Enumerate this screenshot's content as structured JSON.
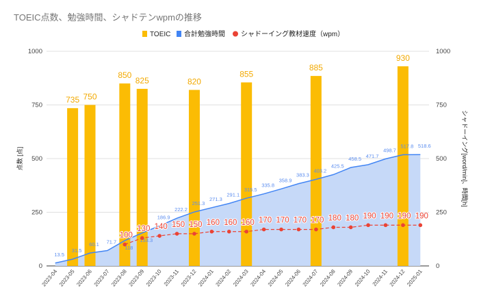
{
  "chart_data": {
    "type": "bar+area+line",
    "title": "TOEIC点数、勉強時間、シャドテンwpmの推移",
    "ylabel_left": "点数 [点]",
    "ylabel_right": "シャドーイング[word/min]、時間[h]",
    "ylim": [
      0,
      1000
    ],
    "yticks": [
      0,
      250,
      500,
      750,
      1000
    ],
    "legend_position": "top",
    "grid": true,
    "categories": [
      "2023-04",
      "2023-05",
      "2023-06",
      "2023-07",
      "2023-08",
      "2023-09",
      "2023-10",
      "2023-11",
      "2023-12",
      "2024-01",
      "2024-02",
      "2024-03",
      "2024-04",
      "2024-05",
      "2024-06",
      "2024-07",
      "2024-08",
      "2024-09",
      "2024-10",
      "2024-11",
      "2024-12",
      "2025-01"
    ],
    "series": [
      {
        "name": "TOEIC",
        "type": "bar",
        "color": "#fbbc04",
        "values": [
          null,
          735,
          750,
          null,
          850,
          825,
          null,
          null,
          820,
          null,
          null,
          855,
          null,
          null,
          null,
          885,
          null,
          null,
          null,
          null,
          930,
          null
        ]
      },
      {
        "name": "合計勉強時間",
        "type": "area",
        "color": "#4285f4",
        "values": [
          13.5,
          31.5,
          60.1,
          71.7,
          118,
          153.3,
          186.9,
          222.2,
          251.3,
          271.3,
          291.1,
          315.5,
          335.8,
          358.9,
          383.3,
          403.2,
          425.5,
          458.5,
          471.7,
          498.7,
          517.8,
          518.6
        ]
      },
      {
        "name": "シャドーイング教材速度（wpm）",
        "type": "line",
        "color": "#ea4335",
        "values": [
          null,
          null,
          null,
          null,
          100,
          130,
          140,
          150,
          150,
          160,
          160,
          160,
          170,
          170,
          170,
          170,
          180,
          180,
          190,
          190,
          190,
          190
        ]
      }
    ]
  }
}
